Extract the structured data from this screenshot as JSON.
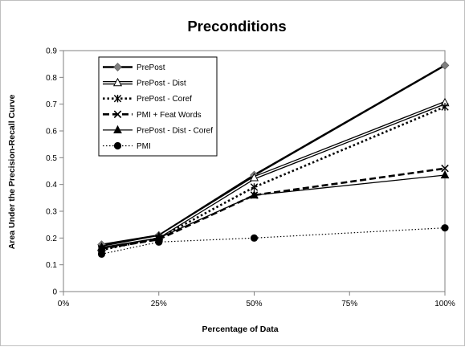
{
  "chart_data": {
    "type": "line",
    "title": "Preconditions",
    "xlabel": "Percentage  of Data",
    "ylabel": "Area Under the Precision-Recall Curve",
    "x": [
      0.1,
      0.25,
      0.5,
      1.0
    ],
    "xlim": [
      0,
      1
    ],
    "ylim": [
      0,
      0.9
    ],
    "x_ticks": [
      0,
      0.25,
      0.5,
      0.75,
      1.0
    ],
    "x_tick_labels": [
      "0%",
      "25%",
      "50%",
      "75%",
      "100%"
    ],
    "y_ticks": [
      0,
      0.1,
      0.2,
      0.3,
      0.4,
      0.5,
      0.6,
      0.7,
      0.8,
      0.9
    ],
    "y_tick_labels": [
      "0",
      "0.1",
      "0.2",
      "0.3",
      "0.4",
      "0.5",
      "0.6",
      "0.7",
      "0.8",
      "0.9"
    ],
    "grid": false,
    "legend_position": "top-left",
    "series": [
      {
        "name": "PrePost",
        "values": [
          0.175,
          0.21,
          0.435,
          0.845
        ],
        "marker": "diamond",
        "line": "solid-thick",
        "color": "#000000",
        "marker_color": "#808080"
      },
      {
        "name": "PrePost - Dist",
        "values": [
          0.165,
          0.205,
          0.425,
          0.705
        ],
        "marker": "triangle-open",
        "line": "double",
        "color": "#000000",
        "marker_color": "#ffffff"
      },
      {
        "name": "PrePost - Coref",
        "values": [
          0.155,
          0.2,
          0.39,
          0.69
        ],
        "marker": "asterisk",
        "line": "dotted-thick",
        "color": "#000000",
        "marker_color": "#000000"
      },
      {
        "name": "PMI + Feat Words",
        "values": [
          0.16,
          0.195,
          0.36,
          0.46
        ],
        "marker": "x",
        "line": "dashed-thick",
        "color": "#000000",
        "marker_color": "#000000"
      },
      {
        "name": "PrePost - Dist - Coref",
        "values": [
          0.165,
          0.2,
          0.36,
          0.435
        ],
        "marker": "triangle",
        "line": "solid",
        "color": "#000000",
        "marker_color": "#000000"
      },
      {
        "name": "PMI",
        "values": [
          0.14,
          0.185,
          0.2,
          0.238
        ],
        "marker": "circle",
        "line": "dotted-thin",
        "color": "#000000",
        "marker_color": "#000000"
      }
    ]
  }
}
